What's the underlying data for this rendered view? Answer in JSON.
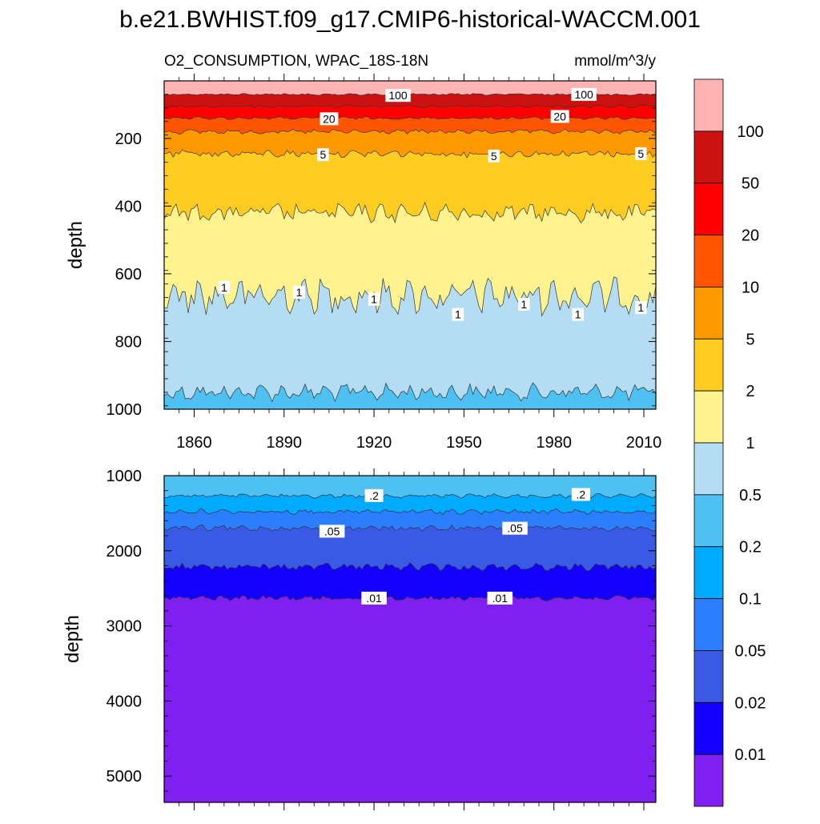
{
  "figure": {
    "title": "b.e21.BWHIST.f09_g17.CMIP6-historical-WACCM.001"
  },
  "legend": {
    "colors": [
      "#f0f0f0"
    ],
    "levels": [
      "0.01",
      "0.02",
      "0.05",
      "0.1",
      "0.2",
      "0.5",
      "1",
      "2",
      "5",
      "10",
      "20",
      "50",
      "100"
    ],
    "position": "right"
  },
  "chart_data": [
    {
      "type": "heatmap",
      "subtype": "filled-contour",
      "left_label": "O2_CONSUMPTION, WPAC_18S-18N",
      "right_label": "mmol/m^3/y",
      "ylabel": "depth",
      "xlim": [
        1850,
        2014
      ],
      "ylim": [
        1000,
        30
      ],
      "y_reversed": true,
      "x_ticks": [
        "1860",
        "1890",
        "1920",
        "1950",
        "1980",
        "2010"
      ],
      "x_tick_values": [
        1860,
        1890,
        1920,
        1950,
        1980,
        2010
      ],
      "y_ticks": [
        "200",
        "400",
        "600",
        "800",
        "1000"
      ],
      "y_tick_values": [
        200,
        400,
        600,
        800,
        1000
      ],
      "contours": [
        {
          "level": 100,
          "mean_depth": 70,
          "variability": 2,
          "fill_above": "#ffb3b3"
        },
        {
          "level": 50,
          "mean_depth": 105,
          "variability": 3,
          "fill_above": "#cc1111"
        },
        {
          "level": 20,
          "mean_depth": 140,
          "variability": 3,
          "fill_above": "#ff0000"
        },
        {
          "level": 10,
          "mean_depth": 180,
          "variability": 5,
          "fill_above": "#ff5500"
        },
        {
          "level": 5,
          "mean_depth": 245,
          "variability": 8,
          "fill_above": "#ff9900"
        },
        {
          "level": 2,
          "mean_depth": 420,
          "variability": 20,
          "fill_above": "#ffcc22"
        },
        {
          "level": 1,
          "mean_depth": 665,
          "variability": 38,
          "fill_above": "#fff38f"
        },
        {
          "level": 0.5,
          "mean_depth": 950,
          "variability": 18,
          "fill_above": "#b4dcf2"
        }
      ],
      "bottom_fill": "#4fc0f2",
      "contour_labels": [
        {
          "text": "100",
          "x": 1928,
          "y": 73
        },
        {
          "text": "100",
          "x": 1990,
          "y": 70
        },
        {
          "text": "20",
          "x": 1905,
          "y": 142
        },
        {
          "text": "20",
          "x": 1982,
          "y": 135
        },
        {
          "text": "5",
          "x": 1903,
          "y": 248
        },
        {
          "text": "5",
          "x": 1960,
          "y": 252
        },
        {
          "text": "5",
          "x": 2009,
          "y": 245
        },
        {
          "text": "1",
          "x": 1870,
          "y": 640
        },
        {
          "text": "1",
          "x": 1895,
          "y": 655
        },
        {
          "text": "1",
          "x": 1920,
          "y": 675
        },
        {
          "text": "1",
          "x": 1948,
          "y": 720
        },
        {
          "text": "1",
          "x": 1970,
          "y": 690
        },
        {
          "text": "1",
          "x": 1988,
          "y": 720
        },
        {
          "text": "1",
          "x": 2009,
          "y": 700
        }
      ]
    },
    {
      "type": "heatmap",
      "subtype": "filled-contour",
      "ylabel": "depth",
      "xlim": [
        1850,
        2014
      ],
      "ylim": [
        5350,
        1000
      ],
      "y_reversed": true,
      "y_ticks": [
        "1000",
        "2000",
        "3000",
        "4000",
        "5000"
      ],
      "y_tick_values": [
        1000,
        2000,
        3000,
        4000,
        5000
      ],
      "contours": [
        {
          "level": 0.2,
          "mean_depth": 1270,
          "variability": 20,
          "fill_above": "#4fc0f2"
        },
        {
          "level": 0.1,
          "mean_depth": 1480,
          "variability": 25,
          "fill_above": "#00aaff"
        },
        {
          "level": 0.05,
          "mean_depth": 1700,
          "variability": 28,
          "fill_above": "#2b7fff"
        },
        {
          "level": 0.02,
          "mean_depth": 2215,
          "variability": 35,
          "fill_above": "#3a5ae6"
        },
        {
          "level": 0.01,
          "mean_depth": 2630,
          "variability": 25,
          "fill_above": "#1400ff"
        }
      ],
      "bottom_fill": "#8020f0",
      "contour_labels": [
        {
          "text": ".2",
          "x": 1920,
          "y": 1265
        },
        {
          "text": ".2",
          "x": 1989,
          "y": 1250
        },
        {
          "text": ".05",
          "x": 1906,
          "y": 1740
        },
        {
          "text": ".05",
          "x": 1967,
          "y": 1700
        },
        {
          "text": ".01",
          "x": 1920,
          "y": 2630
        },
        {
          "text": ".01",
          "x": 1962,
          "y": 2630
        }
      ]
    }
  ]
}
